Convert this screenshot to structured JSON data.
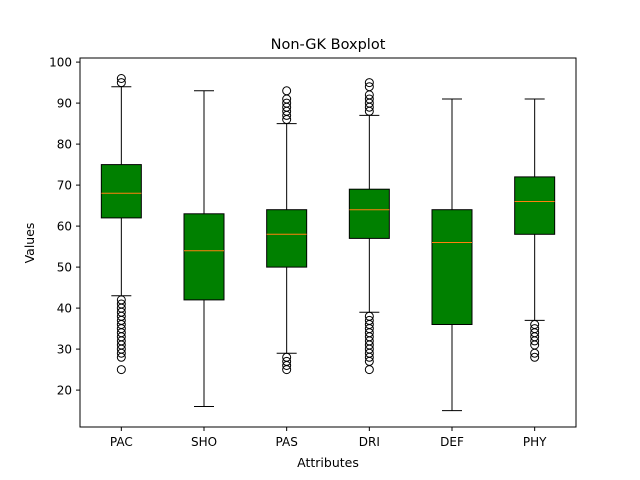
{
  "chart_data": {
    "type": "boxplot",
    "title": "Non-GK Boxplot",
    "xlabel": "Attributes",
    "ylabel": "Values",
    "ylim": [
      11,
      101
    ],
    "yticks": [
      20,
      30,
      40,
      50,
      60,
      70,
      80,
      90,
      100
    ],
    "box_color": "#008000",
    "median_color": "#ff7f0e",
    "grid": false,
    "categories": [
      "PAC",
      "SHO",
      "PAS",
      "DRI",
      "DEF",
      "PHY"
    ],
    "boxes": [
      {
        "name": "PAC",
        "whisker_low": 43,
        "q1": 62,
        "median": 68,
        "q3": 75,
        "whisker_high": 94,
        "outliers": [
          25,
          28,
          29,
          30,
          31,
          32,
          33,
          34,
          35,
          36,
          37,
          38,
          39,
          40,
          41,
          42,
          95,
          96
        ]
      },
      {
        "name": "SHO",
        "whisker_low": 16,
        "q1": 42,
        "median": 54,
        "q3": 63,
        "whisker_high": 93,
        "outliers": []
      },
      {
        "name": "PAS",
        "whisker_low": 29,
        "q1": 50,
        "median": 58,
        "q3": 64,
        "whisker_high": 85,
        "outliers": [
          25,
          26,
          27,
          28,
          86,
          87,
          88,
          89,
          90,
          91,
          93
        ]
      },
      {
        "name": "DRI",
        "whisker_low": 39,
        "q1": 57,
        "median": 64,
        "q3": 69,
        "whisker_high": 87,
        "outliers": [
          25,
          27,
          28,
          29,
          30,
          31,
          32,
          33,
          34,
          35,
          36,
          37,
          38,
          88,
          89,
          90,
          91,
          92,
          94,
          95
        ]
      },
      {
        "name": "DEF",
        "whisker_low": 15,
        "q1": 36,
        "median": 56,
        "q3": 64,
        "whisker_high": 91,
        "outliers": []
      },
      {
        "name": "PHY",
        "whisker_low": 37,
        "q1": 58,
        "median": 66,
        "q3": 72,
        "whisker_high": 91,
        "outliers": [
          28,
          29,
          31,
          32,
          33,
          34,
          35,
          36
        ]
      }
    ]
  }
}
